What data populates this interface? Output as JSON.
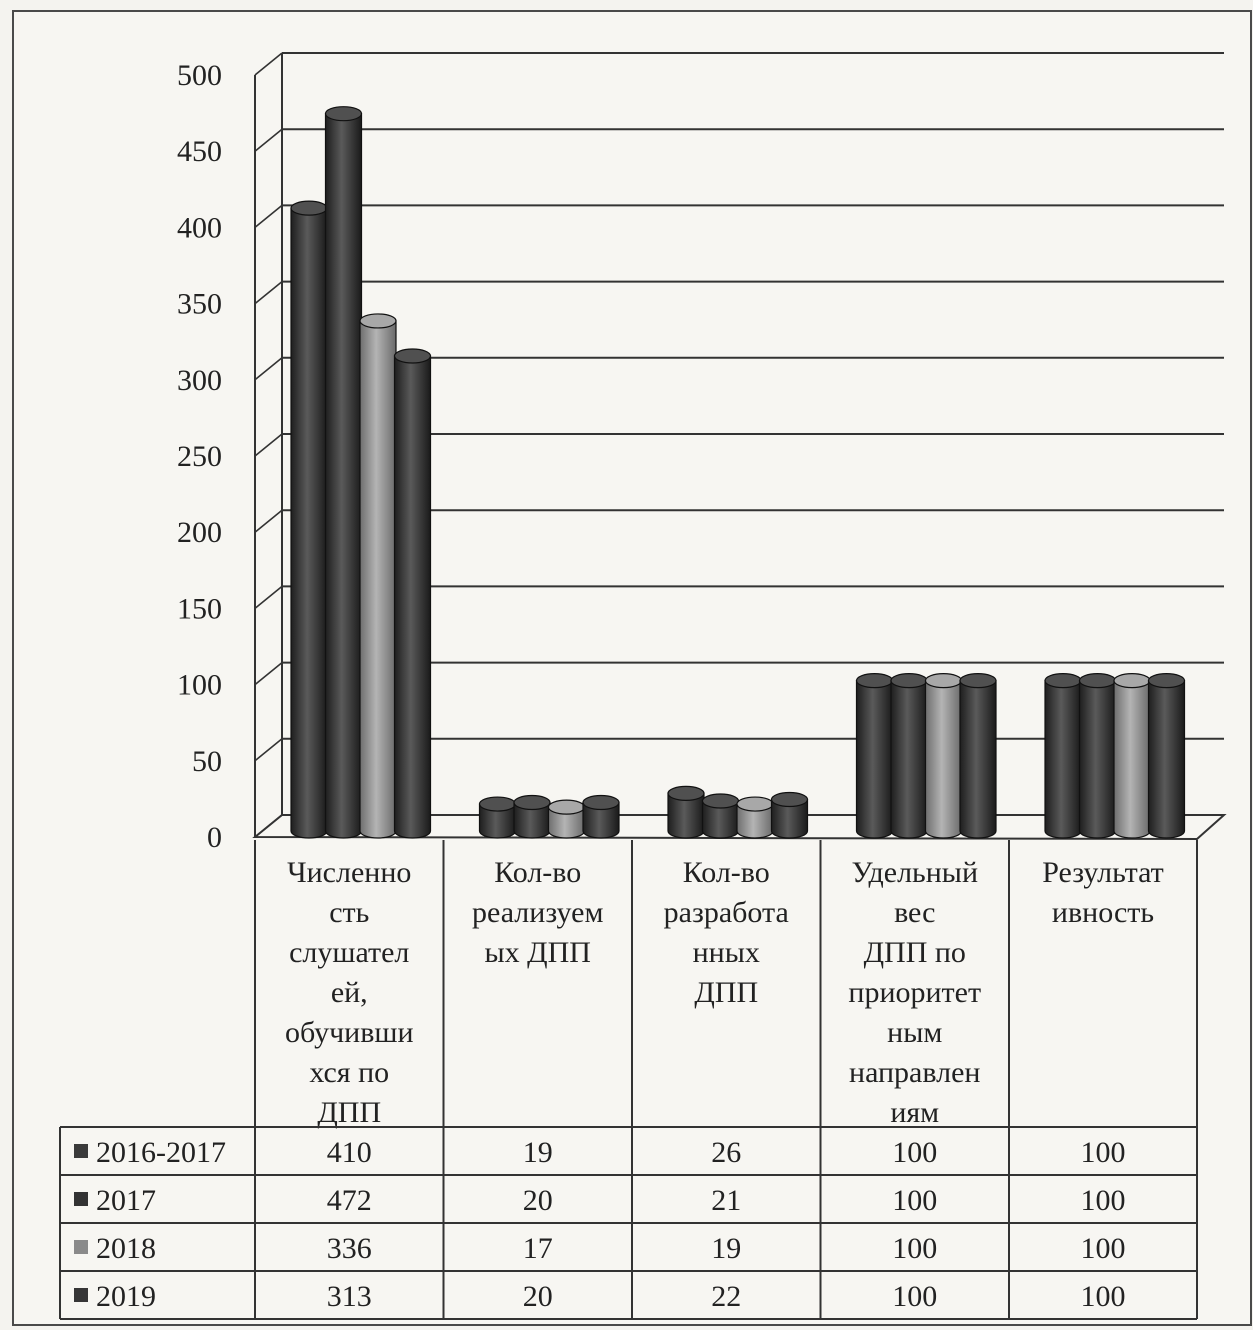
{
  "chart_data": {
    "type": "bar",
    "style": "3d-cylinder",
    "ylim": [
      0,
      500
    ],
    "yticks": [
      0,
      50,
      100,
      150,
      200,
      250,
      300,
      350,
      400,
      450,
      500
    ],
    "categories": [
      [
        "Численно",
        "сть",
        "слушател",
        "ей,",
        "обучивши",
        "хся по",
        "ДПП"
      ],
      [
        "Кол-во",
        "реализуем",
        "ых ДПП"
      ],
      [
        "Кол-во",
        "разработа",
        "нных",
        "ДПП"
      ],
      [
        "Удельный",
        "вес",
        "ДПП по",
        "приоритет",
        "ным",
        "направлен",
        "иям"
      ],
      [
        "Результат",
        "ивность"
      ]
    ],
    "series": [
      {
        "name": "2016-2017",
        "color": "#3a3a3a",
        "values": [
          410,
          19,
          26,
          100,
          100
        ]
      },
      {
        "name": "2017",
        "color": "#333333",
        "values": [
          472,
          20,
          21,
          100,
          100
        ]
      },
      {
        "name": "2018",
        "color": "#8a8a8a",
        "values": [
          336,
          17,
          19,
          100,
          100
        ]
      },
      {
        "name": "2019",
        "color": "#363636",
        "values": [
          313,
          20,
          22,
          100,
          100
        ]
      }
    ],
    "grid": true,
    "legend": "data-table"
  }
}
